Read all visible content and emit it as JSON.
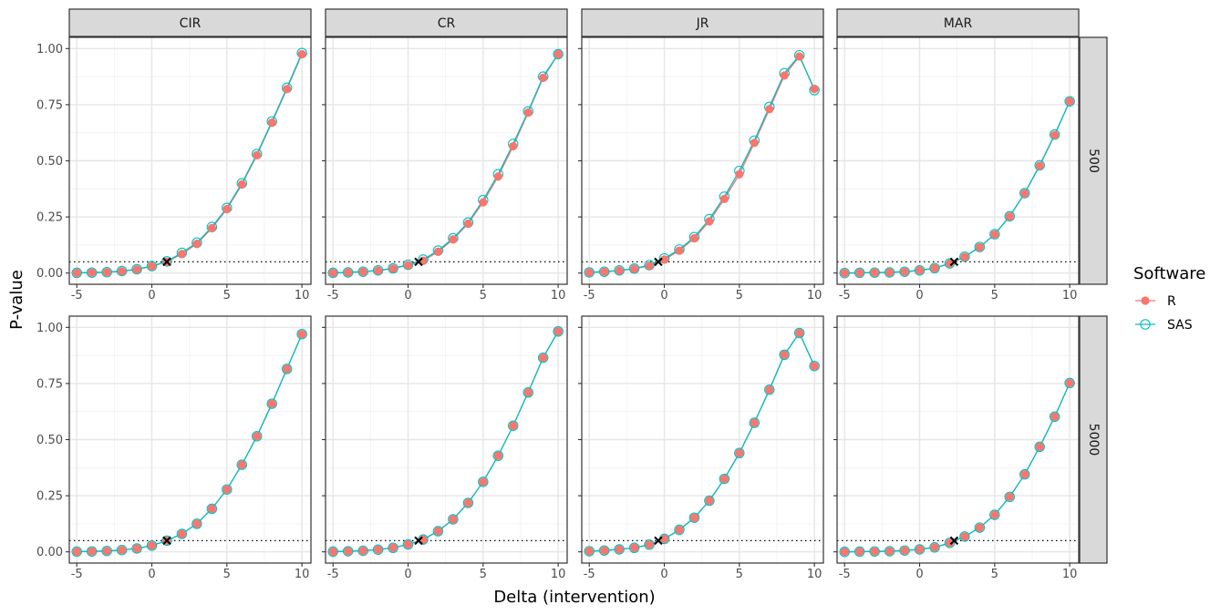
{
  "chart_data": {
    "type": "line",
    "xlabel": "Delta (intervention)",
    "ylabel": "P-value",
    "x_ticks": [
      -5,
      0,
      5,
      10
    ],
    "y_ticks": [
      "0.00",
      "0.25",
      "0.50",
      "0.75",
      "1.00"
    ],
    "xlim": [
      -5.5,
      10.6
    ],
    "ylim": [
      -0.05,
      1.05
    ],
    "reference_line_y": 0.05,
    "columns": [
      "CIR",
      "CR",
      "JR",
      "MAR"
    ],
    "rows": [
      "500",
      "5000"
    ],
    "x": [
      -5,
      -4,
      -3,
      -2,
      -1,
      0,
      1,
      2,
      3,
      4,
      5,
      6,
      7,
      8,
      9,
      10
    ],
    "legend": {
      "title": "Software",
      "items": [
        {
          "name": "R",
          "color": "#F8766D",
          "shape": "filled-circle"
        },
        {
          "name": "SAS",
          "color": "#00BFC4",
          "shape": "open-circle"
        }
      ]
    },
    "panels": [
      {
        "row": "500",
        "col": "CIR",
        "cross_x": 1.0,
        "R": [
          0.001,
          0.002,
          0.004,
          0.008,
          0.016,
          0.03,
          0.05,
          0.085,
          0.13,
          0.2,
          0.285,
          0.395,
          0.525,
          0.67,
          0.82,
          0.975
        ],
        "SAS": [
          0.001,
          0.002,
          0.004,
          0.009,
          0.017,
          0.031,
          0.052,
          0.09,
          0.135,
          0.205,
          0.29,
          0.4,
          0.53,
          0.675,
          0.825,
          0.98
        ]
      },
      {
        "row": "500",
        "col": "CR",
        "cross_x": 0.7,
        "R": [
          0.001,
          0.003,
          0.006,
          0.011,
          0.02,
          0.035,
          0.055,
          0.095,
          0.15,
          0.22,
          0.315,
          0.43,
          0.565,
          0.715,
          0.87,
          0.975
        ],
        "SAS": [
          0.001,
          0.003,
          0.006,
          0.012,
          0.021,
          0.037,
          0.06,
          0.1,
          0.155,
          0.225,
          0.325,
          0.44,
          0.575,
          0.72,
          0.875,
          0.975
        ]
      },
      {
        "row": "500",
        "col": "JR",
        "cross_x": -0.4,
        "R": [
          0.003,
          0.006,
          0.011,
          0.019,
          0.032,
          0.06,
          0.1,
          0.155,
          0.23,
          0.33,
          0.44,
          0.58,
          0.73,
          0.88,
          0.965,
          0.82
        ],
        "SAS": [
          0.003,
          0.006,
          0.012,
          0.02,
          0.035,
          0.065,
          0.105,
          0.16,
          0.24,
          0.34,
          0.455,
          0.59,
          0.74,
          0.89,
          0.97,
          0.815
        ]
      },
      {
        "row": "500",
        "col": "MAR",
        "cross_x": 2.3,
        "R": [
          0.0,
          0.001,
          0.002,
          0.003,
          0.006,
          0.012,
          0.022,
          0.042,
          0.072,
          0.115,
          0.172,
          0.252,
          0.355,
          0.478,
          0.615,
          0.765
        ],
        "SAS": [
          0.0,
          0.001,
          0.002,
          0.003,
          0.006,
          0.012,
          0.022,
          0.043,
          0.073,
          0.116,
          0.173,
          0.253,
          0.356,
          0.48,
          0.617,
          0.765
        ]
      },
      {
        "row": "5000",
        "col": "CIR",
        "cross_x": 1.0,
        "R": [
          0.001,
          0.002,
          0.004,
          0.008,
          0.015,
          0.028,
          0.05,
          0.08,
          0.125,
          0.192,
          0.278,
          0.388,
          0.515,
          0.66,
          0.815,
          0.97
        ],
        "SAS": [
          0.001,
          0.002,
          0.004,
          0.008,
          0.015,
          0.028,
          0.05,
          0.08,
          0.125,
          0.192,
          0.278,
          0.388,
          0.515,
          0.66,
          0.815,
          0.97
        ]
      },
      {
        "row": "5000",
        "col": "CR",
        "cross_x": 0.7,
        "R": [
          0.001,
          0.003,
          0.005,
          0.01,
          0.018,
          0.033,
          0.055,
          0.092,
          0.145,
          0.218,
          0.312,
          0.428,
          0.562,
          0.71,
          0.865,
          0.982
        ],
        "SAS": [
          0.001,
          0.003,
          0.005,
          0.01,
          0.018,
          0.033,
          0.055,
          0.092,
          0.145,
          0.218,
          0.312,
          0.428,
          0.562,
          0.71,
          0.865,
          0.982
        ]
      },
      {
        "row": "5000",
        "col": "JR",
        "cross_x": -0.4,
        "R": [
          0.003,
          0.006,
          0.011,
          0.018,
          0.032,
          0.058,
          0.098,
          0.152,
          0.228,
          0.325,
          0.44,
          0.575,
          0.722,
          0.878,
          0.975,
          0.828
        ],
        "SAS": [
          0.003,
          0.006,
          0.011,
          0.018,
          0.032,
          0.058,
          0.098,
          0.152,
          0.228,
          0.325,
          0.44,
          0.575,
          0.722,
          0.878,
          0.975,
          0.828
        ]
      },
      {
        "row": "5000",
        "col": "MAR",
        "cross_x": 2.3,
        "R": [
          0.0,
          0.001,
          0.002,
          0.003,
          0.006,
          0.011,
          0.02,
          0.04,
          0.068,
          0.108,
          0.165,
          0.245,
          0.345,
          0.468,
          0.602,
          0.752
        ],
        "SAS": [
          0.0,
          0.001,
          0.002,
          0.003,
          0.006,
          0.011,
          0.02,
          0.04,
          0.068,
          0.108,
          0.165,
          0.245,
          0.345,
          0.468,
          0.602,
          0.752
        ]
      }
    ]
  }
}
